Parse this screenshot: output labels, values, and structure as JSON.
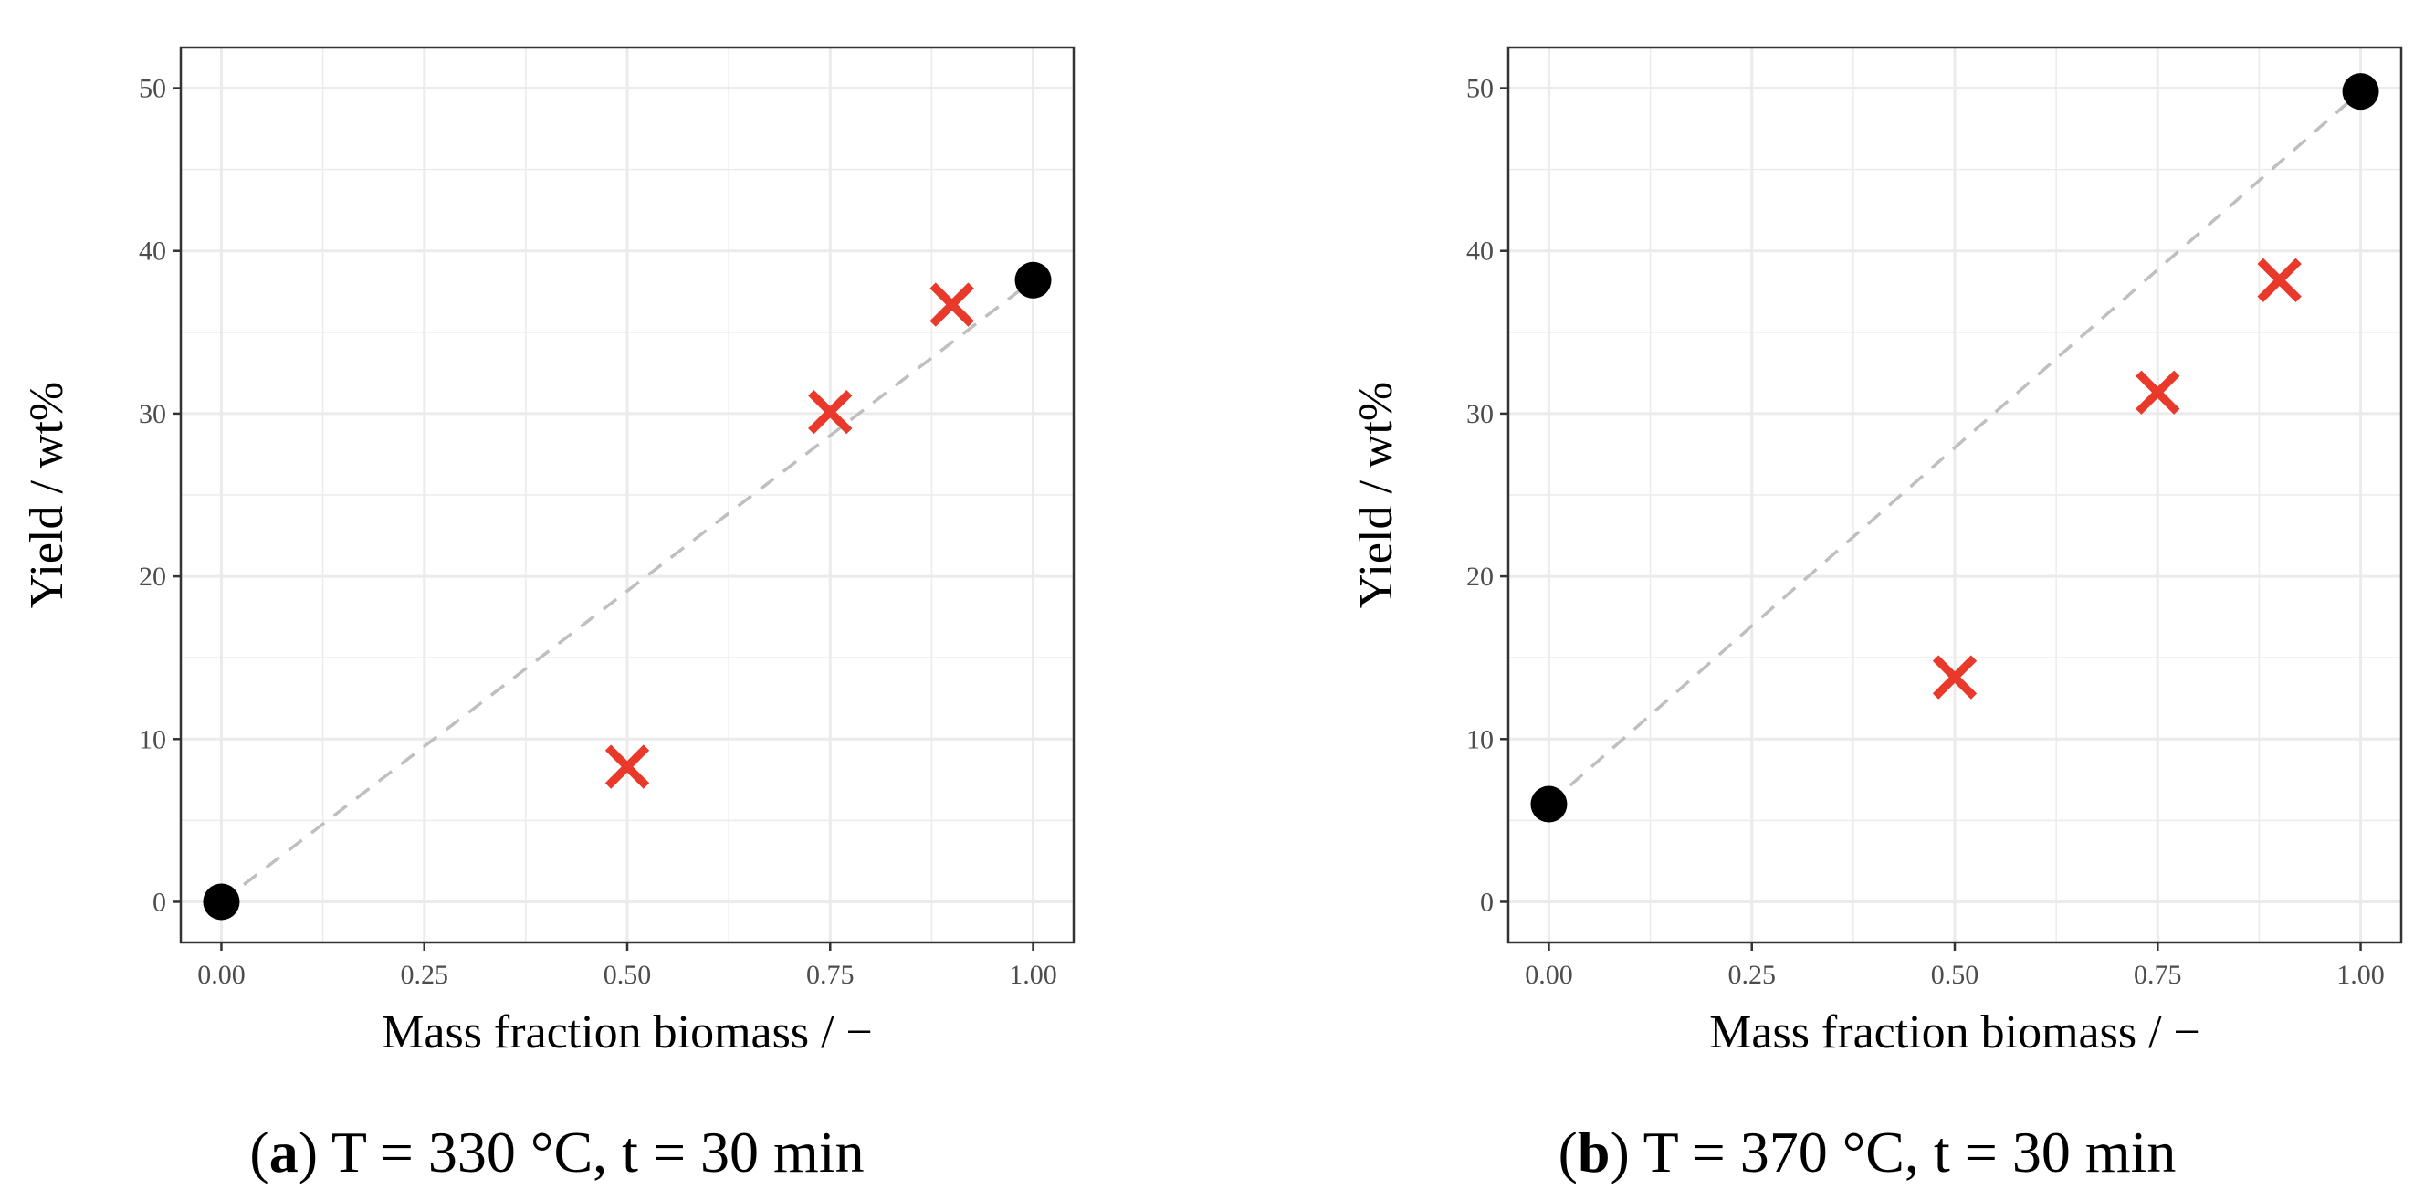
{
  "colors": {
    "mixture_marker": "#e8392b",
    "pure_marker": "#000000",
    "reference_line": "#bfbfbf",
    "grid": "#ebebeb",
    "panel_border": "#333333"
  },
  "chart_data": [
    {
      "type": "scatter",
      "panel": "a",
      "caption_label": "a",
      "caption_text": ") T = 330 °C, t = 30 min",
      "xlabel": "Mass fraction biomass / −",
      "ylabel": "Yield / wt%",
      "xlim": [
        -0.05,
        1.05
      ],
      "ylim": [
        -2.5,
        52.5
      ],
      "xticks": [
        0.0,
        0.25,
        0.5,
        0.75,
        1.0
      ],
      "xtick_labels": [
        "0.00",
        "0.25",
        "0.50",
        "0.75",
        "1.00"
      ],
      "yticks": [
        0,
        10,
        20,
        30,
        40,
        50
      ],
      "ytick_labels": [
        "0",
        "10",
        "20",
        "30",
        "40",
        "50"
      ],
      "grid": true,
      "series": [
        {
          "marker": "circle",
          "x": [
            0.0,
            1.0
          ],
          "y": [
            0.0,
            38.2
          ]
        },
        {
          "marker": "cross",
          "x": [
            0.5,
            0.75,
            0.9
          ],
          "y": [
            8.3,
            30.1,
            36.7
          ]
        }
      ],
      "reference_line": {
        "style": "dashed",
        "x": [
          0.0,
          1.0
        ],
        "y": [
          0.0,
          38.2
        ]
      }
    },
    {
      "type": "scatter",
      "panel": "b",
      "caption_label": "b",
      "caption_text": ") T = 370 °C, t = 30 min",
      "xlabel": "Mass fraction biomass / −",
      "ylabel": "Yield / wt%",
      "xlim": [
        -0.05,
        1.05
      ],
      "ylim": [
        -2.5,
        52.5
      ],
      "xticks": [
        0.0,
        0.25,
        0.5,
        0.75,
        1.0
      ],
      "xtick_labels": [
        "0.00",
        "0.25",
        "0.50",
        "0.75",
        "1.00"
      ],
      "yticks": [
        0,
        10,
        20,
        30,
        40,
        50
      ],
      "ytick_labels": [
        "0",
        "10",
        "20",
        "30",
        "40",
        "50"
      ],
      "grid": true,
      "series": [
        {
          "marker": "circle",
          "x": [
            0.0,
            1.0
          ],
          "y": [
            6.0,
            49.8
          ]
        },
        {
          "marker": "cross",
          "x": [
            0.5,
            0.75,
            0.9
          ],
          "y": [
            13.8,
            31.3,
            38.2
          ]
        }
      ],
      "reference_line": {
        "style": "dashed",
        "x": [
          0.0,
          1.0
        ],
        "y": [
          6.0,
          49.8
        ]
      }
    }
  ]
}
